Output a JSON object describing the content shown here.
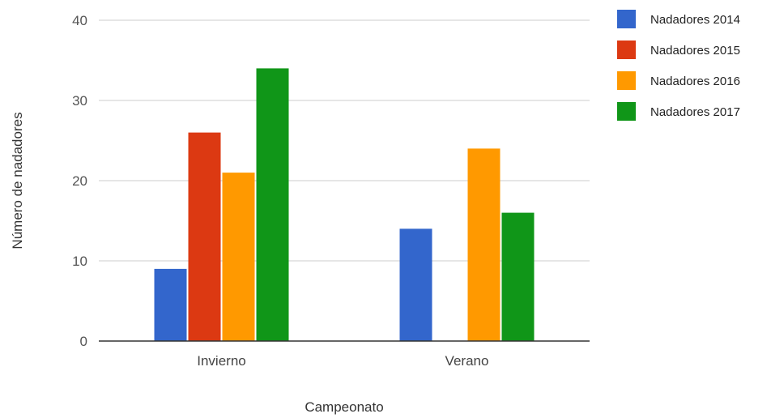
{
  "chart_data": {
    "type": "bar",
    "title": "",
    "xlabel": "Campeonato",
    "ylabel": "Número de nadadores",
    "categories": [
      "Invierno",
      "Verano"
    ],
    "ylim": [
      0,
      40
    ],
    "yticks": [
      0,
      10,
      20,
      30,
      40
    ],
    "grid": true,
    "legend_position": "right",
    "series": [
      {
        "name": "Nadadores 2014",
        "color": "#3366cc",
        "values": [
          9,
          14
        ]
      },
      {
        "name": "Nadadores 2015",
        "color": "#dc3912",
        "values": [
          26,
          0
        ]
      },
      {
        "name": "Nadadores 2016",
        "color": "#ff9900",
        "values": [
          21,
          24
        ]
      },
      {
        "name": "Nadadores 2017",
        "color": "#109618",
        "values": [
          34,
          16
        ]
      }
    ]
  }
}
